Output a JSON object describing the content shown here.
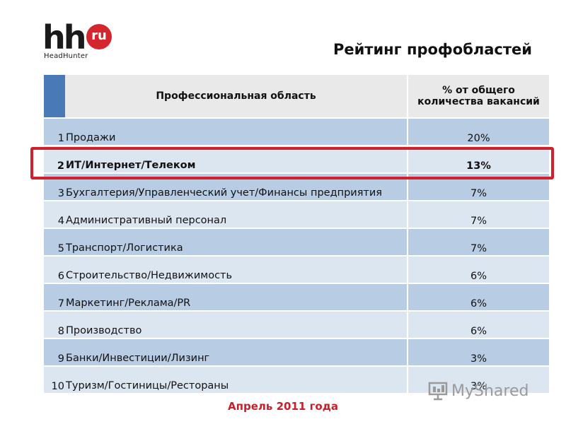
{
  "logo": {
    "mark": "hh",
    "badge": "ru",
    "subtitle": "HeadHunter"
  },
  "title": "Рейтинг профобластей",
  "table": {
    "headers": {
      "area": "Профессиональная область",
      "percent": "% от общего количества вакансий"
    },
    "rows": [
      {
        "rank": "1",
        "area": "Продажи",
        "percent": "20%"
      },
      {
        "rank": "2",
        "area": "ИТ/Интернет/Телеком",
        "percent": "13%",
        "highlighted": true
      },
      {
        "rank": "3",
        "area": "Бухгалтерия/Управленческий учет/Финансы предприятия",
        "percent": "7%"
      },
      {
        "rank": "4",
        "area": "Административный персонал",
        "percent": "7%"
      },
      {
        "rank": "5",
        "area": "Транспорт/Логистика",
        "percent": "7%"
      },
      {
        "rank": "6",
        "area": "Строительство/Недвижимость",
        "percent": "6%"
      },
      {
        "rank": "7",
        "area": "Маркетинг/Реклама/PR",
        "percent": "6%"
      },
      {
        "rank": "8",
        "area": "Производство",
        "percent": "6%"
      },
      {
        "rank": "9",
        "area": "Банки/Инвестиции/Лизинг",
        "percent": "3%"
      },
      {
        "rank": "10",
        "area": "Туризм/Гостиницы/Рестораны",
        "percent": "3%"
      }
    ]
  },
  "watermark": {
    "text": "MyShared",
    "icon": "presentation-board-icon"
  },
  "footer": "Апрель 2011 года",
  "colors": {
    "header_index": "#4a79b8",
    "row_dark": "#b8cce4",
    "row_light": "#dce6f1",
    "highlight": "#d0202c",
    "footer_text": "#c8202a"
  }
}
